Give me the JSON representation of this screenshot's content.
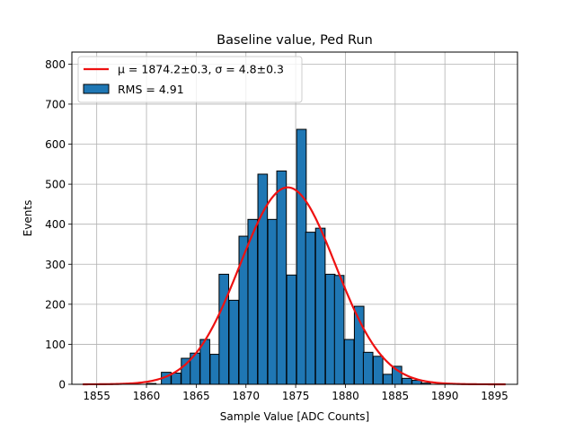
{
  "chart_data": {
    "type": "bar",
    "title": "Baseline value, Ped Run",
    "xlabel": "Sample Value [ADC Counts]",
    "ylabel": "Events",
    "xlim": [
      1852.5,
      1897.3
    ],
    "ylim": [
      0,
      830
    ],
    "xticks": [
      1855,
      1860,
      1865,
      1870,
      1875,
      1880,
      1885,
      1890,
      1895
    ],
    "yticks": [
      0,
      100,
      200,
      300,
      400,
      500,
      600,
      700,
      800
    ],
    "grid": true,
    "legend_position": "top-left",
    "bin_width": 0.96,
    "bins": [
      {
        "x": 1854.0,
        "count": 0
      },
      {
        "x": 1856.0,
        "count": 0
      },
      {
        "x": 1858.0,
        "count": 0
      },
      {
        "x": 1860.0,
        "count": 2
      },
      {
        "x": 1861.5,
        "count": 30
      },
      {
        "x": 1862.5,
        "count": 28
      },
      {
        "x": 1863.5,
        "count": 65
      },
      {
        "x": 1864.4,
        "count": 78
      },
      {
        "x": 1865.4,
        "count": 112
      },
      {
        "x": 1866.4,
        "count": 75
      },
      {
        "x": 1867.3,
        "count": 275
      },
      {
        "x": 1868.3,
        "count": 210
      },
      {
        "x": 1869.3,
        "count": 370
      },
      {
        "x": 1870.2,
        "count": 412
      },
      {
        "x": 1871.2,
        "count": 525
      },
      {
        "x": 1872.2,
        "count": 412
      },
      {
        "x": 1873.1,
        "count": 533
      },
      {
        "x": 1874.1,
        "count": 273
      },
      {
        "x": 1875.1,
        "count": 637
      },
      {
        "x": 1876.0,
        "count": 380
      },
      {
        "x": 1877.0,
        "count": 390
      },
      {
        "x": 1878.0,
        "count": 275
      },
      {
        "x": 1878.9,
        "count": 272
      },
      {
        "x": 1879.9,
        "count": 112
      },
      {
        "x": 1880.9,
        "count": 195
      },
      {
        "x": 1881.8,
        "count": 80
      },
      {
        "x": 1882.8,
        "count": 70
      },
      {
        "x": 1883.8,
        "count": 25
      },
      {
        "x": 1884.7,
        "count": 45
      },
      {
        "x": 1885.7,
        "count": 15
      },
      {
        "x": 1886.7,
        "count": 10
      },
      {
        "x": 1887.6,
        "count": 3
      },
      {
        "x": 1888.6,
        "count": 0
      }
    ],
    "bar_color": "#1f77b4",
    "fit": {
      "type": "gaussian",
      "mu": 1874.2,
      "sigma": 4.8,
      "amplitude": 492,
      "x_range": [
        1853.6,
        1896.1
      ],
      "color": "#ee1111"
    },
    "legend": [
      {
        "kind": "line",
        "label": "$\\mu = 1874.2 \\pm 0.3$, $\\sigma = 4.8 \\pm 0.3$",
        "color": "#ee1111"
      },
      {
        "kind": "patch",
        "label": "RMS = 4.91",
        "color": "#1f77b4"
      }
    ]
  },
  "legend_display": {
    "fit_label": "μ = 1874.2±0.3, σ = 4.8±0.3",
    "hist_label": "RMS = 4.91"
  }
}
